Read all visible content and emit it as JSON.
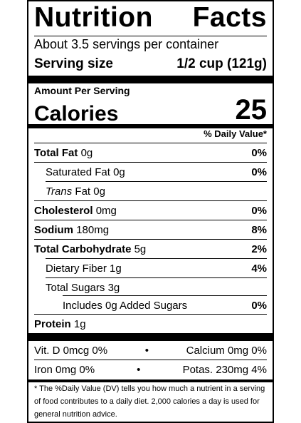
{
  "title_left": "Nutrition",
  "title_right": "Facts",
  "servings_per_container": "About 3.5 servings per container",
  "serving_size_label": "Serving size",
  "serving_size_value": "1/2 cup (121g)",
  "amount_per_serving": "Amount Per Serving",
  "calories_label": "Calories",
  "calories_value": "25",
  "daily_value_header": "% Daily Value*",
  "nutrients": [
    {
      "name": "Total Fat",
      "amount": "0g",
      "dv": "0%"
    },
    {
      "name": "Saturated Fat",
      "amount": "0g",
      "dv": "0%"
    },
    {
      "name": "Trans",
      "name_rest": "Fat",
      "amount": "0g",
      "dv": ""
    },
    {
      "name": "Cholesterol",
      "amount": "0mg",
      "dv": "0%"
    },
    {
      "name": "Sodium",
      "amount": "180mg",
      "dv": "8%"
    },
    {
      "name": "Total Carbohydrate",
      "amount": "5g",
      "dv": "2%"
    },
    {
      "name": "Dietary Fiber",
      "amount": "1g",
      "dv": "4%"
    },
    {
      "name": "Total Sugars",
      "amount": "3g",
      "dv": ""
    },
    {
      "name": "Includes 0g Added Sugars",
      "amount": "",
      "dv": "0%"
    },
    {
      "name": "Protein",
      "amount": "1g",
      "dv": ""
    }
  ],
  "vitamins": {
    "row1_left": "Vit. D 0mcg 0%",
    "row1_right": "Calcium 0mg 0%",
    "row2_left": "Iron 0mg 0%",
    "row2_right": "Potas. 230mg 4%",
    "separator": "•"
  },
  "footnote": "* The %Daily Value (DV) tells you how much a nutrient in a serving of food contributes to a daily diet. 2,000 calories a day is used for general nutrition advice."
}
